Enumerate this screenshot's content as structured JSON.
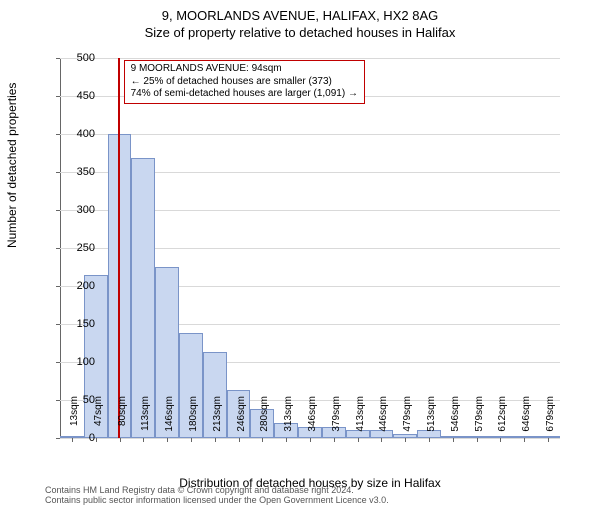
{
  "titles": {
    "main": "9, MOORLANDS AVENUE, HALIFAX, HX2 8AG",
    "sub": "Size of property relative to detached houses in Halifax"
  },
  "axes": {
    "ylabel": "Number of detached properties",
    "xlabel": "Distribution of detached houses by size in Halifax",
    "ylim": [
      0,
      500
    ],
    "yticks": [
      0,
      50,
      100,
      150,
      200,
      250,
      300,
      350,
      400,
      450,
      500
    ],
    "xtick_labels": [
      "13sqm",
      "47sqm",
      "80sqm",
      "113sqm",
      "146sqm",
      "180sqm",
      "213sqm",
      "246sqm",
      "280sqm",
      "313sqm",
      "346sqm",
      "379sqm",
      "413sqm",
      "446sqm",
      "479sqm",
      "513sqm",
      "546sqm",
      "579sqm",
      "612sqm",
      "646sqm",
      "679sqm"
    ],
    "tick_fontsize": 10,
    "label_fontsize": 12,
    "title_fontsize": 13
  },
  "histogram": {
    "type": "histogram",
    "values": [
      0,
      215,
      400,
      368,
      225,
      138,
      113,
      63,
      38,
      20,
      15,
      15,
      10,
      10,
      5,
      10,
      3,
      0,
      0,
      3,
      0
    ],
    "bar_fill": "#c9d7f0",
    "bar_stroke": "#7a94c8",
    "bar_width_ratio": 1.0,
    "grid_color": "#d9d9d9",
    "background": "#ffffff"
  },
  "reference_line": {
    "position_index": 2.42,
    "color": "#c00000",
    "width": 2
  },
  "callout": {
    "lines": [
      "9 MOORLANDS AVENUE: 94sqm",
      "← 25% of detached houses are smaller (373)",
      "74% of semi-detached houses are larger (1,091) →"
    ],
    "border_color": "#c00000",
    "font_size": 10
  },
  "footnote": {
    "line1": "Contains HM Land Registry data © Crown copyright and database right 2024.",
    "line2": "Contains public sector information licensed under the Open Government Licence v3.0."
  }
}
